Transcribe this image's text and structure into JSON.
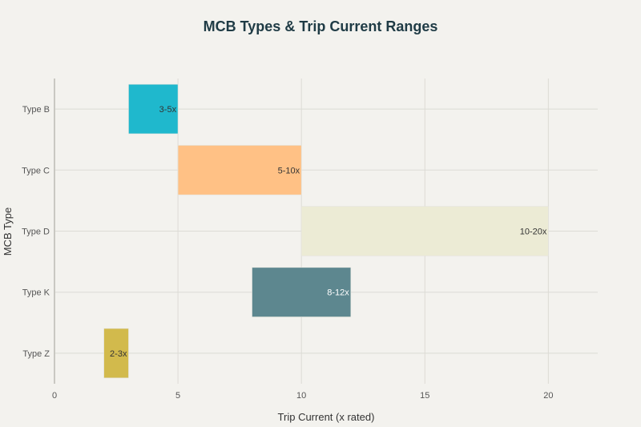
{
  "chart_data": {
    "type": "bar",
    "orientation": "horizontal-range",
    "title": "MCB Types & Trip Current Ranges",
    "xlabel": "Trip Current (x rated)",
    "ylabel": "MCB Type",
    "xlim": [
      0,
      22
    ],
    "xticks": [
      0,
      5,
      10,
      15,
      20
    ],
    "grid": true,
    "categories": [
      "Type B",
      "Type C",
      "Type D",
      "Type K",
      "Type Z"
    ],
    "series": [
      {
        "ranges": [
          {
            "category": "Type B",
            "start": 3,
            "end": 5,
            "label": "3-5x",
            "color": "#1fb8cd",
            "label_color": "#333333"
          },
          {
            "category": "Type C",
            "start": 5,
            "end": 10,
            "label": "5-10x",
            "color": "#ffc185",
            "label_color": "#333333"
          },
          {
            "category": "Type D",
            "start": 10,
            "end": 20,
            "label": "10-20x",
            "color": "#ecebd5",
            "label_color": "#333333"
          },
          {
            "category": "Type K",
            "start": 8,
            "end": 12,
            "label": "8-12x",
            "color": "#5d878f",
            "label_color": "#ffffff"
          },
          {
            "category": "Type Z",
            "start": 2,
            "end": 3,
            "label": "2-3x",
            "color": "#d2ba4c",
            "label_color": "#333333"
          }
        ]
      }
    ]
  }
}
